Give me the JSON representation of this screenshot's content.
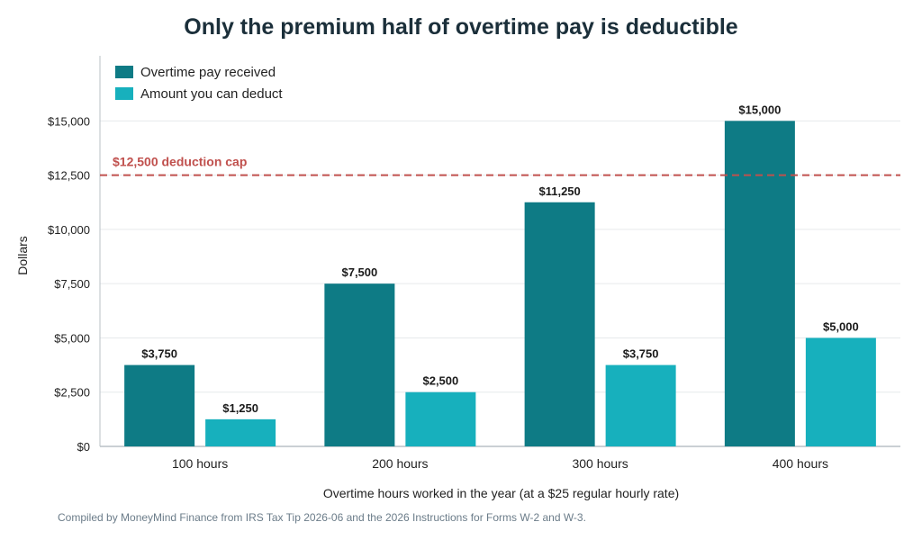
{
  "colors": {
    "overtime": "#0e7b85",
    "deduct": "#17b0bd",
    "cap": "#c0504d",
    "grid": "#e6e9ec",
    "axis": "#b9c0c6",
    "text": "#222222"
  },
  "chart_data": {
    "type": "bar",
    "title": "Only the premium half of overtime pay is deductible",
    "xlabel": "Overtime hours worked in the year (at a $25 regular hourly rate)",
    "ylabel": "Dollars",
    "ylim": [
      0,
      18000
    ],
    "yticks": [
      0,
      2500,
      5000,
      7500,
      10000,
      12500,
      15000
    ],
    "ytick_labels": [
      "$0",
      "$2,500",
      "$5,000",
      "$7,500",
      "$10,000",
      "$12,500",
      "$15,000"
    ],
    "categories": [
      "100 hours",
      "200 hours",
      "300 hours",
      "400 hours"
    ],
    "series": [
      {
        "name": "Overtime pay received",
        "values": [
          3750,
          7500,
          11250,
          15000
        ],
        "labels": [
          "$3,750",
          "$7,500",
          "$11,250",
          "$15,000"
        ]
      },
      {
        "name": "Amount you can deduct",
        "values": [
          1250,
          2500,
          3750,
          5000
        ],
        "labels": [
          "$1,250",
          "$2,500",
          "$3,750",
          "$5,000"
        ]
      }
    ],
    "reference_line": {
      "value": 12500,
      "label": "$12,500 deduction cap"
    },
    "grid": true,
    "legend_position": "top-left"
  },
  "source_note": "Compiled by MoneyMind Finance from IRS Tax Tip 2026-06 and the 2026 Instructions for Forms W-2 and W-3."
}
